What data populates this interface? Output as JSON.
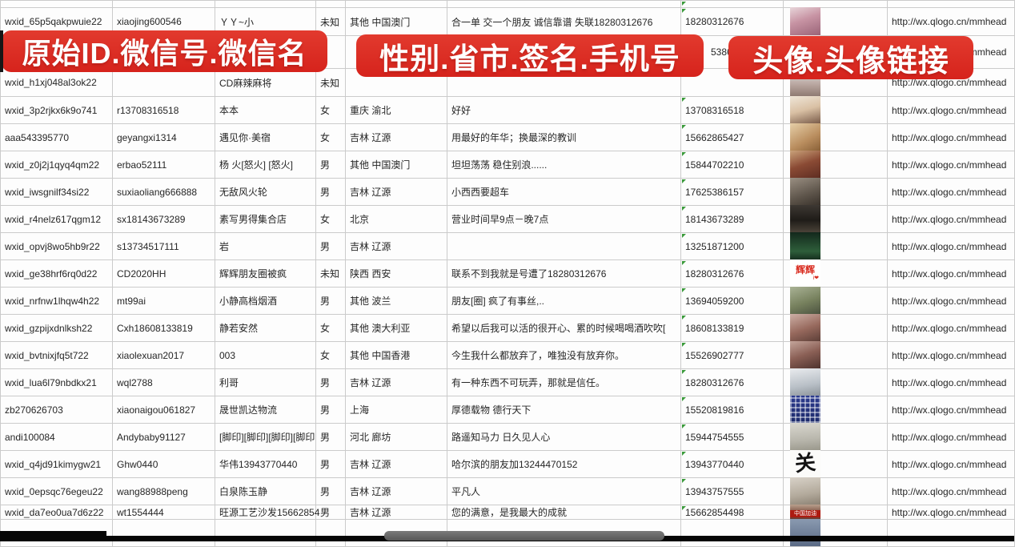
{
  "colors": {
    "banner_red": "#d6231c",
    "grid_line": "#cbcbcb",
    "indicator_green": "#3a9a3a",
    "scrollbar_gray": "#6b6b6b"
  },
  "banners": [
    {
      "label": "原始ID.微信号.微信名"
    },
    {
      "label": "性别.省市.签名.手机号"
    },
    {
      "label": "头像.头像链接"
    }
  ],
  "table": {
    "link_text": "http://wx.qlogo.cn/mmhead",
    "rows": [
      {
        "id": "wxid_65p5qakpwuie22",
        "wx": "xiaojing600546",
        "name": "ＹＹ~小",
        "gender": "未知",
        "region": "其他 中国澳门",
        "sig": "合一单 交一个朋友 诚信靠谱 失联18280312676",
        "phone": "18280312676",
        "avatar": {
          "style": "p1"
        },
        "link": true
      },
      {
        "id": "",
        "wx": "",
        "name": "",
        "gender": "",
        "region": "",
        "sig": "",
        "phone": "5386",
        "phone_offset": true,
        "avatar": {
          "style": "p2"
        },
        "link": true
      },
      {
        "id": "wxid_h1xj048al3ok22",
        "wx": "",
        "name": "CD麻辣麻将",
        "gender": "未知",
        "region": "",
        "sig": "",
        "phone": "",
        "avatar": {
          "style": "p3"
        },
        "link": true
      },
      {
        "id": "wxid_3p2rjkx6k9o741",
        "wx": "r13708316518",
        "name": "本本",
        "gender": "女",
        "region": "重庆 渝北",
        "sig": "好好",
        "phone": "13708316518",
        "avatar": {
          "style": "p4"
        },
        "link": true
      },
      {
        "id": "aaa543395770",
        "wx": "geyangxi1314",
        "name": "遇见你·美宿",
        "gender": "女",
        "region": "吉林 辽源",
        "sig": "用最好的年华；换最深的教训",
        "phone": "15662865427",
        "avatar": {
          "style": "p5"
        },
        "link": true
      },
      {
        "id": "wxid_z0j2j1qyq4qm22",
        "wx": "erbao52111",
        "name": "杨 火[怒火] [怒火]",
        "gender": "男",
        "region": "其他 中国澳门",
        "sig": "坦坦荡荡 稳住别浪......",
        "phone": "15844702210",
        "avatar": {
          "style": "p6"
        },
        "link": true
      },
      {
        "id": "wxid_iwsgnilf34si22",
        "wx": "suxiaoliang666888",
        "name": "无敌风火轮",
        "gender": "男",
        "region": "吉林 辽源",
        "sig": "小西西要超车",
        "phone": "17625386157",
        "avatar": {
          "style": "p7"
        },
        "link": true
      },
      {
        "id": "wxid_r4nelz617qgm12",
        "wx": "sx18143673289",
        "name": "素写男得集合店",
        "gender": "女",
        "region": "北京",
        "sig": "营业时间早9点－晚7点",
        "phone": "18143673289",
        "avatar": {
          "style": "p8"
        },
        "link": true
      },
      {
        "id": "wxid_opvj8wo5hb9r22",
        "wx": "s13734517111",
        "name": "岩",
        "gender": "男",
        "region": "吉林 辽源",
        "sig": "",
        "phone": "13251871200",
        "avatar": {
          "style": "p9"
        },
        "link": true
      },
      {
        "id": "wxid_ge38hrf6rq0d22",
        "wx": "CD2020HH",
        "name": "辉辉朋友圈被疯",
        "gender": "未知",
        "region": "陕西 西安",
        "sig": "联系不到我就是号遭了18280312676",
        "phone": "18280312676",
        "avatar": {
          "style": "p10",
          "text": "辉辉",
          "subtext": "i❤"
        },
        "link": true
      },
      {
        "id": "wxid_nrfnw1lhqw4h22",
        "wx": "mt99ai",
        "name": "小静高档烟酒",
        "gender": "男",
        "region": "其他 波兰",
        "sig": "朋友[圈] 疯了有事丝,..",
        "phone": "13694059200",
        "avatar": {
          "style": "p11"
        },
        "link": true
      },
      {
        "id": "wxid_gzpijxdnlksh22",
        "wx": "Cxh18608133819",
        "name": "静若安然",
        "gender": "女",
        "region": "其他 澳大利亚",
        "sig": "希望以后我可以活的很开心、累的时候喝喝酒吹吹[",
        "phone": "18608133819",
        "avatar": {
          "style": "p12"
        },
        "link": true
      },
      {
        "id": "wxid_bvtnixjfq5t722",
        "wx": "xiaolexuan2017",
        "name": "003",
        "gender": "女",
        "region": "其他 中国香港",
        "sig": "今生我什么都放弃了，唯独没有放弃你。",
        "phone": "15526902777",
        "avatar": {
          "style": "p13"
        },
        "link": true
      },
      {
        "id": "wxid_lua6l79nbdkx21",
        "wx": "wql2788",
        "name": "利哥",
        "gender": "男",
        "region": "吉林 辽源",
        "sig": "有一种东西不可玩弄，那就是信任。",
        "phone": "18280312676",
        "avatar": {
          "style": "p14"
        },
        "link": true
      },
      {
        "id": "zb270626703",
        "wx": "xiaonaigou061827",
        "name": "晟世凯达物流",
        "gender": "男",
        "region": "上海",
        "sig": "厚德载物 德行天下",
        "phone": "15520819816",
        "avatar": {
          "style": "p15"
        },
        "link": true
      },
      {
        "id": "andi100084",
        "wx": "Andybaby91127",
        "name": "[脚印][脚印][脚印][脚印",
        "gender": "男",
        "region": "河北 廊坊",
        "sig": "路遥知马力 日久见人心",
        "phone": "15944754555",
        "avatar": {
          "style": "p16"
        },
        "link": true
      },
      {
        "id": "wxid_q4jd91kimygw21",
        "wx": "Ghw0440",
        "name": "华伟13943770440",
        "gender": "男",
        "region": "吉林 辽源",
        "sig": "哈尔滨的朋友加13244470152",
        "phone": "13943770440",
        "avatar": {
          "style": "p17",
          "text": "关"
        },
        "link": true
      },
      {
        "id": "wxid_0epsqc76egeu22",
        "wx": "wang88988peng",
        "name": "白泉陈玉静",
        "gender": "男",
        "region": "吉林 辽源",
        "sig": "平凡人",
        "phone": "13943757555",
        "avatar": {
          "style": "p18"
        },
        "link": true
      },
      {
        "id": "wxid_da7eo0ua7d6z22",
        "wx": "wt1554444",
        "name": "旺源工艺沙发15662854",
        "gender": "男",
        "region": "吉林 辽源",
        "sig": "您的满意，是我最大的成就",
        "phone": "15662854498",
        "avatar": {
          "style": "p19",
          "subtext": "中国加油"
        },
        "link": true
      },
      {
        "id": "",
        "wx": "",
        "name": "",
        "gender": "",
        "region": "",
        "sig": "",
        "phone": "",
        "avatar": {
          "style": "p20"
        },
        "link": false
      }
    ]
  },
  "scrollbar": {
    "orientation": "horizontal"
  }
}
